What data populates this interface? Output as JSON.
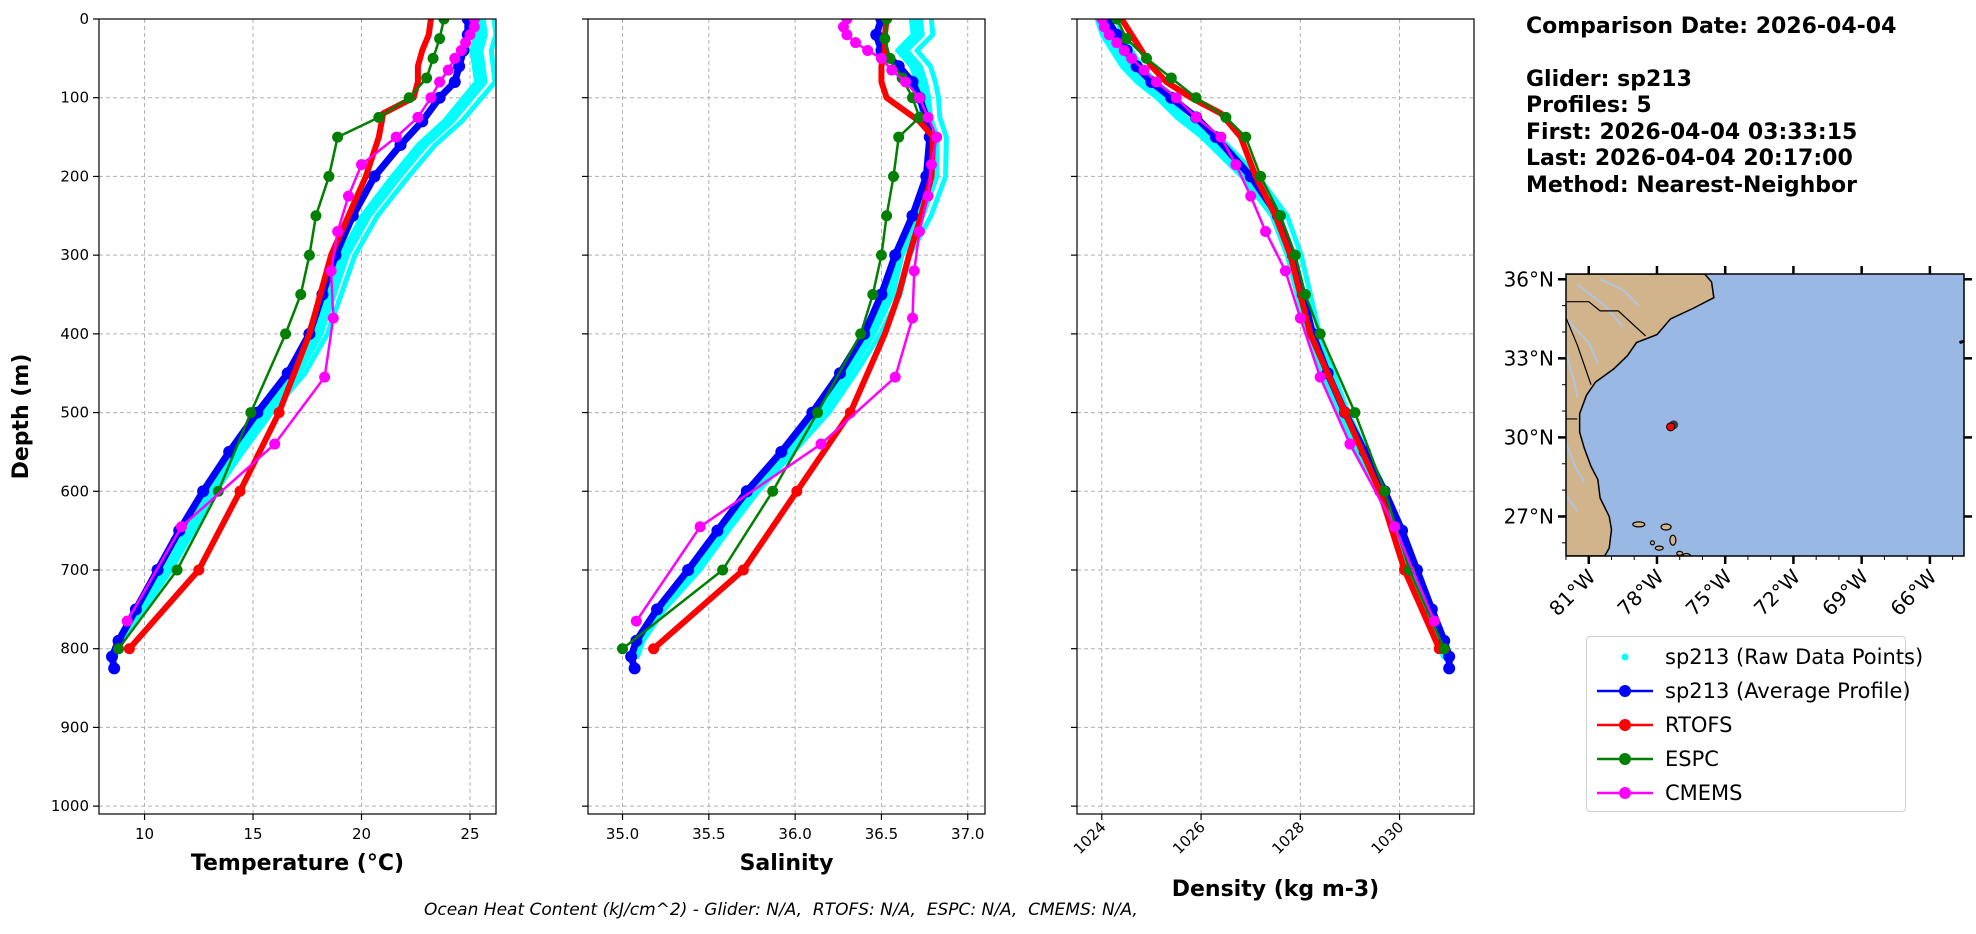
{
  "info": {
    "title": "Comparison Date: 2026-04-04",
    "glider": "Glider: sp213",
    "profiles": "Profiles: 5",
    "first": "First: 2026-04-04 03:33:15",
    "last": "Last: 2026-04-04 20:17:00",
    "method": "Method: Nearest-Neighbor"
  },
  "footer": "Ocean Heat Content (kJ/cm^2) - Glider: N/A,  RTOFS: N/A,  ESPC: N/A,  CMEMS: N/A,",
  "colors": {
    "raw": "#00ffff",
    "avg": "#0000ff",
    "rtofs": "#ff0000",
    "espc": "#008000",
    "cmems": "#ff00ff",
    "land": "#d2b48c",
    "ocean": "#99b8e3",
    "rivers": "#b0c4de"
  },
  "legend": [
    {
      "key": "raw",
      "label": "sp213 (Raw Data Points)"
    },
    {
      "key": "avg",
      "label": "sp213 (Average Profile)"
    },
    {
      "key": "rtofs",
      "label": "RTOFS"
    },
    {
      "key": "espc",
      "label": "ESPC"
    },
    {
      "key": "cmems",
      "label": "CMEMS"
    }
  ],
  "map": {
    "lat_ticks": [
      36,
      33,
      30,
      27
    ],
    "lat_labels": [
      "36°N",
      "33°N",
      "30°N",
      "27°N"
    ],
    "lon_ticks": [
      -81,
      -78,
      -75,
      -72,
      -69,
      -66
    ],
    "lon_labels": [
      "81°W",
      "78°W",
      "75°W",
      "72°W",
      "69°W",
      "66°W"
    ],
    "lon_range": [
      -82,
      -64.5
    ],
    "lat_range": [
      25.5,
      36.2
    ],
    "glider_position": [
      -77.4,
      30.4
    ]
  },
  "chart_data": [
    {
      "type": "line",
      "xlabel": "Temperature (°C)",
      "ylabel": "Depth (m)",
      "xlim": [
        7.9,
        26.2
      ],
      "ylim": [
        1010,
        0
      ],
      "x_ticks": [
        10,
        15,
        20,
        25
      ],
      "y_ticks": [
        0,
        100,
        200,
        300,
        400,
        500,
        600,
        700,
        800,
        900,
        1000
      ],
      "grid": true,
      "series": [
        {
          "name": "sp213 (Raw Data Points)",
          "key": "raw",
          "depth": [
            0,
            20,
            40,
            60,
            80,
            100,
            130,
            160,
            200,
            250,
            300,
            350,
            400,
            450,
            500,
            550,
            600,
            650,
            700,
            750,
            790,
            810
          ],
          "x": [
            25.4,
            25.5,
            25.3,
            25.4,
            25.5,
            24.9,
            24.0,
            22.8,
            21.6,
            20.2,
            19.2,
            18.6,
            18.0,
            17.0,
            15.5,
            14.2,
            13.0,
            12.0,
            11.0,
            9.8,
            8.8,
            8.5
          ]
        },
        {
          "name": "sp213 (Average Profile)",
          "key": "avg",
          "depth": [
            0,
            20,
            40,
            60,
            80,
            100,
            130,
            160,
            200,
            250,
            300,
            350,
            400,
            450,
            500,
            550,
            600,
            650,
            700,
            750,
            790,
            810,
            825
          ],
          "x": [
            24.9,
            24.9,
            24.7,
            24.5,
            24.3,
            23.6,
            22.8,
            21.8,
            20.6,
            19.6,
            18.8,
            18.2,
            17.6,
            16.6,
            15.2,
            13.9,
            12.7,
            11.6,
            10.6,
            9.6,
            8.8,
            8.5,
            8.6
          ]
        },
        {
          "name": "RTOFS",
          "key": "rtofs",
          "depth": [
            0,
            20,
            40,
            60,
            80,
            100,
            120,
            150,
            200,
            250,
            300,
            350,
            400,
            500,
            600,
            700,
            800
          ],
          "x": [
            23.2,
            23.1,
            22.8,
            22.6,
            22.6,
            22.4,
            21.0,
            20.8,
            20.2,
            19.4,
            18.6,
            18.1,
            17.6,
            16.2,
            14.4,
            12.5,
            9.3
          ],
          "markers": [
            false,
            false,
            false,
            false,
            false,
            false,
            false,
            false,
            false,
            false,
            false,
            false,
            false,
            true,
            true,
            true,
            true
          ]
        },
        {
          "name": "ESPC",
          "key": "espc",
          "depth": [
            0,
            25,
            50,
            75,
            100,
            125,
            150,
            200,
            250,
            300,
            350,
            400,
            500,
            600,
            700,
            800
          ],
          "x": [
            23.8,
            23.6,
            23.3,
            23.0,
            22.2,
            20.8,
            18.9,
            18.5,
            17.9,
            17.6,
            17.2,
            16.5,
            14.9,
            13.4,
            11.5,
            8.8
          ]
        },
        {
          "name": "CMEMS",
          "key": "cmems",
          "depth": [
            0,
            10,
            20,
            30,
            40,
            50,
            65,
            80,
            100,
            125,
            150,
            185,
            225,
            270,
            320,
            380,
            455,
            540,
            645,
            765
          ],
          "x": [
            25.2,
            25.2,
            25.0,
            24.8,
            24.6,
            24.3,
            24.0,
            23.6,
            23.2,
            22.6,
            21.6,
            20.0,
            19.4,
            18.9,
            18.6,
            18.7,
            18.3,
            16.0,
            11.7,
            9.2
          ]
        }
      ]
    },
    {
      "type": "line",
      "xlabel": "Salinity",
      "ylabel": "",
      "xlim": [
        34.8,
        37.1
      ],
      "ylim": [
        1010,
        0
      ],
      "x_ticks": [
        35.0,
        35.5,
        36.0,
        36.5,
        37.0
      ],
      "x_tick_labels": [
        "35.0",
        "35.5",
        "36.0",
        "36.5",
        "37.0"
      ],
      "y_ticks": [
        0,
        100,
        200,
        300,
        400,
        500,
        600,
        700,
        800,
        900,
        1000
      ],
      "grid": true,
      "series": [
        {
          "name": "sp213 (Raw Data Points)",
          "key": "raw",
          "depth": [
            0,
            20,
            40,
            60,
            80,
            100,
            125,
            150,
            200,
            250,
            300,
            350,
            400,
            450,
            500,
            550,
            600,
            650,
            700,
            750,
            790,
            810
          ],
          "x": [
            36.7,
            36.71,
            36.62,
            36.7,
            36.73,
            36.75,
            36.76,
            36.8,
            36.8,
            36.72,
            36.6,
            36.55,
            36.44,
            36.3,
            36.15,
            35.95,
            35.75,
            35.58,
            35.42,
            35.22,
            35.1,
            35.07
          ]
        },
        {
          "name": "sp213 (Average Profile)",
          "key": "avg",
          "depth": [
            0,
            20,
            40,
            60,
            80,
            100,
            125,
            150,
            200,
            250,
            300,
            350,
            400,
            450,
            500,
            550,
            600,
            650,
            700,
            750,
            790,
            810,
            825
          ],
          "x": [
            36.5,
            36.47,
            36.5,
            36.6,
            36.68,
            36.72,
            36.76,
            36.78,
            36.76,
            36.68,
            36.58,
            36.5,
            36.4,
            36.26,
            36.1,
            35.92,
            35.72,
            35.55,
            35.38,
            35.2,
            35.08,
            35.05,
            35.07
          ]
        },
        {
          "name": "RTOFS",
          "key": "rtofs",
          "depth": [
            0,
            20,
            40,
            60,
            80,
            100,
            130,
            150,
            200,
            250,
            300,
            350,
            400,
            500,
            600,
            700,
            800
          ],
          "x": [
            36.53,
            36.52,
            36.52,
            36.5,
            36.5,
            36.53,
            36.72,
            36.8,
            36.79,
            36.73,
            36.66,
            36.6,
            36.52,
            36.32,
            36.01,
            35.7,
            35.18
          ],
          "markers": [
            false,
            false,
            false,
            false,
            false,
            false,
            false,
            false,
            false,
            false,
            false,
            false,
            false,
            true,
            true,
            true,
            true
          ]
        },
        {
          "name": "ESPC",
          "key": "espc",
          "depth": [
            0,
            25,
            50,
            75,
            100,
            125,
            150,
            200,
            250,
            300,
            350,
            400,
            500,
            600,
            700,
            800
          ],
          "x": [
            36.53,
            36.52,
            36.55,
            36.62,
            36.68,
            36.72,
            36.6,
            36.57,
            36.53,
            36.5,
            36.45,
            36.38,
            36.13,
            35.87,
            35.58,
            35.0
          ]
        },
        {
          "name": "CMEMS",
          "key": "cmems",
          "depth": [
            0,
            10,
            20,
            30,
            40,
            50,
            65,
            80,
            100,
            125,
            150,
            185,
            225,
            270,
            320,
            380,
            455,
            540,
            645,
            765
          ],
          "x": [
            36.3,
            36.28,
            36.3,
            36.35,
            36.42,
            36.5,
            36.56,
            36.64,
            36.72,
            36.77,
            36.82,
            36.79,
            36.77,
            36.72,
            36.69,
            36.68,
            36.58,
            36.15,
            35.45,
            35.08
          ]
        }
      ]
    },
    {
      "type": "line",
      "xlabel": "Density (kg m-3)",
      "ylabel": "",
      "xlim": [
        1023.5,
        1031.5
      ],
      "ylim": [
        1010,
        0
      ],
      "x_ticks": [
        1024,
        1026,
        1028,
        1030
      ],
      "y_ticks": [
        0,
        100,
        200,
        300,
        400,
        500,
        600,
        700,
        800,
        900,
        1000
      ],
      "grid": true,
      "series": [
        {
          "name": "sp213 (Raw Data Points)",
          "key": "raw",
          "depth": [
            0,
            20,
            40,
            60,
            80,
            100,
            125,
            150,
            200,
            250,
            300,
            350,
            400,
            450,
            500,
            550,
            600,
            650,
            700,
            750,
            790,
            810
          ],
          "x": [
            1024.0,
            1024.1,
            1024.3,
            1024.5,
            1024.8,
            1025.2,
            1025.6,
            1026.1,
            1026.9,
            1027.5,
            1027.8,
            1028.0,
            1028.2,
            1028.5,
            1028.8,
            1029.2,
            1029.6,
            1029.9,
            1030.2,
            1030.5,
            1030.8,
            1030.9
          ]
        },
        {
          "name": "sp213 (Average Profile)",
          "key": "avg",
          "depth": [
            0,
            20,
            40,
            60,
            80,
            100,
            125,
            150,
            200,
            250,
            300,
            350,
            400,
            450,
            500,
            550,
            600,
            650,
            700,
            750,
            790,
            810,
            825
          ],
          "x": [
            1024.1,
            1024.3,
            1024.5,
            1024.7,
            1025.0,
            1025.4,
            1025.9,
            1026.3,
            1027.0,
            1027.55,
            1027.85,
            1028.05,
            1028.25,
            1028.55,
            1028.9,
            1029.3,
            1029.7,
            1030.05,
            1030.35,
            1030.65,
            1030.9,
            1031.0,
            1031.0
          ]
        },
        {
          "name": "RTOFS",
          "key": "rtofs",
          "depth": [
            0,
            20,
            40,
            60,
            80,
            100,
            120,
            150,
            200,
            250,
            300,
            350,
            400,
            500,
            600,
            700,
            800
          ],
          "x": [
            1024.4,
            1024.6,
            1024.8,
            1025.0,
            1025.3,
            1025.8,
            1026.4,
            1026.8,
            1027.1,
            1027.5,
            1027.8,
            1028.0,
            1028.2,
            1028.9,
            1029.6,
            1030.1,
            1030.8
          ],
          "markers": [
            false,
            false,
            false,
            false,
            false,
            false,
            false,
            false,
            false,
            false,
            false,
            false,
            false,
            true,
            true,
            true,
            true
          ]
        },
        {
          "name": "ESPC",
          "key": "espc",
          "depth": [
            0,
            25,
            50,
            75,
            100,
            125,
            150,
            200,
            250,
            300,
            350,
            400,
            500,
            600,
            700,
            800
          ],
          "x": [
            1024.3,
            1024.5,
            1024.9,
            1025.4,
            1025.9,
            1026.5,
            1026.9,
            1027.2,
            1027.6,
            1027.9,
            1028.1,
            1028.4,
            1029.1,
            1029.7,
            1030.2,
            1030.9
          ]
        },
        {
          "name": "CMEMS",
          "key": "cmems",
          "depth": [
            0,
            10,
            20,
            30,
            40,
            50,
            65,
            80,
            100,
            125,
            150,
            185,
            225,
            270,
            320,
            380,
            455,
            540,
            645,
            765
          ],
          "x": [
            1024.0,
            1024.05,
            1024.15,
            1024.3,
            1024.45,
            1024.6,
            1024.85,
            1025.1,
            1025.5,
            1025.9,
            1026.4,
            1026.7,
            1027.0,
            1027.3,
            1027.7,
            1028.0,
            1028.4,
            1029.0,
            1029.9,
            1030.7
          ]
        }
      ]
    }
  ]
}
